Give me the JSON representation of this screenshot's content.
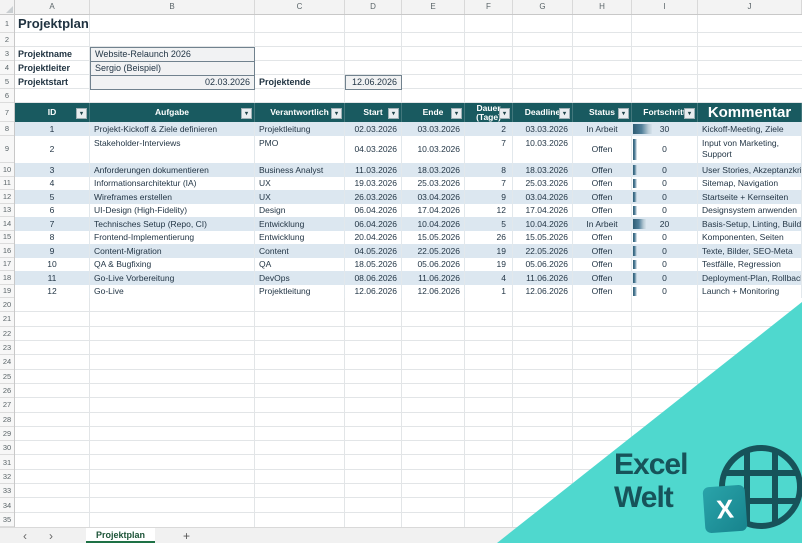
{
  "app": {
    "column_letters": [
      "A",
      "B",
      "C",
      "D",
      "E",
      "F",
      "G",
      "H",
      "I",
      "J"
    ],
    "first_row": 1,
    "last_row": 35
  },
  "title": "Projektplan",
  "info": {
    "name_label": "Projektname",
    "name_value": "Website-Relaunch 2026",
    "leader_label": "Projektleiter",
    "leader_value": "Sergio (Beispiel)",
    "start_label": "Projektstart",
    "start_value": "02.03.2026",
    "end_label": "Projektende",
    "end_value": "12.06.2026"
  },
  "table": {
    "headers": [
      {
        "label": "ID",
        "filter": true
      },
      {
        "label": "Aufgabe",
        "filter": true
      },
      {
        "label": "Verantwortlich",
        "filter": true
      },
      {
        "label": "Start",
        "filter": true
      },
      {
        "label": "Ende",
        "filter": true
      },
      {
        "label": "Dauer\n(Tage)",
        "filter": true
      },
      {
        "label": "Deadline",
        "filter": true
      },
      {
        "label": "Status",
        "filter": true
      },
      {
        "label": "Fortschritt",
        "filter": true
      },
      {
        "label": "Kommentar",
        "filter": false,
        "big": true
      }
    ],
    "rows": [
      {
        "id": "1",
        "aufgabe": "Projekt-Kickoff & Ziele definieren",
        "verantwortlich": "Projektleitung",
        "start": "02.03.2026",
        "ende": "03.03.2026",
        "dauer": "2",
        "deadline": "03.03.2026",
        "status": "In Arbeit",
        "fortschritt": 30,
        "kommentar": "Kickoff-Meeting, Ziele"
      },
      {
        "id": "2",
        "aufgabe": "Stakeholder-Interviews",
        "verantwortlich": "PMO",
        "start": "04.03.2026",
        "ende": "10.03.2026",
        "dauer": "7",
        "deadline": "10.03.2026",
        "status": "Offen",
        "fortschritt": 0,
        "kommentar": "Input von Marketing, Support",
        "tall": true
      },
      {
        "id": "3",
        "aufgabe": "Anforderungen dokumentieren",
        "verantwortlich": "Business Analyst",
        "start": "11.03.2026",
        "ende": "18.03.2026",
        "dauer": "8",
        "deadline": "18.03.2026",
        "status": "Offen",
        "fortschritt": 0,
        "kommentar": "User Stories, Akzeptanzkriterien"
      },
      {
        "id": "4",
        "aufgabe": "Informationsarchitektur (IA)",
        "verantwortlich": "UX",
        "start": "19.03.2026",
        "ende": "25.03.2026",
        "dauer": "7",
        "deadline": "25.03.2026",
        "status": "Offen",
        "fortschritt": 0,
        "kommentar": "Sitemap, Navigation"
      },
      {
        "id": "5",
        "aufgabe": "Wireframes erstellen",
        "verantwortlich": "UX",
        "start": "26.03.2026",
        "ende": "03.04.2026",
        "dauer": "9",
        "deadline": "03.04.2026",
        "status": "Offen",
        "fortschritt": 0,
        "kommentar": "Startseite + Kernseiten"
      },
      {
        "id": "6",
        "aufgabe": "UI-Design (High-Fidelity)",
        "verantwortlich": "Design",
        "start": "06.04.2026",
        "ende": "17.04.2026",
        "dauer": "12",
        "deadline": "17.04.2026",
        "status": "Offen",
        "fortschritt": 0,
        "kommentar": "Designsystem anwenden"
      },
      {
        "id": "7",
        "aufgabe": "Technisches Setup (Repo, CI)",
        "verantwortlich": "Entwicklung",
        "start": "06.04.2026",
        "ende": "10.04.2026",
        "dauer": "5",
        "deadline": "10.04.2026",
        "status": "In Arbeit",
        "fortschritt": 20,
        "kommentar": "Basis-Setup, Linting, Build"
      },
      {
        "id": "8",
        "aufgabe": "Frontend-Implementierung",
        "verantwortlich": "Entwicklung",
        "start": "20.04.2026",
        "ende": "15.05.2026",
        "dauer": "26",
        "deadline": "15.05.2026",
        "status": "Offen",
        "fortschritt": 0,
        "kommentar": "Komponenten, Seiten"
      },
      {
        "id": "9",
        "aufgabe": "Content-Migration",
        "verantwortlich": "Content",
        "start": "04.05.2026",
        "ende": "22.05.2026",
        "dauer": "19",
        "deadline": "22.05.2026",
        "status": "Offen",
        "fortschritt": 0,
        "kommentar": "Texte, Bilder, SEO-Meta"
      },
      {
        "id": "10",
        "aufgabe": "QA & Bugfixing",
        "verantwortlich": "QA",
        "start": "18.05.2026",
        "ende": "05.06.2026",
        "dauer": "19",
        "deadline": "05.06.2026",
        "status": "Offen",
        "fortschritt": 0,
        "kommentar": "Testfälle, Regression"
      },
      {
        "id": "11",
        "aufgabe": "Go-Live Vorbereitung",
        "verantwortlich": "DevOps",
        "start": "08.06.2026",
        "ende": "11.06.2026",
        "dauer": "4",
        "deadline": "11.06.2026",
        "status": "Offen",
        "fortschritt": 0,
        "kommentar": "Deployment-Plan, Rollback"
      },
      {
        "id": "12",
        "aufgabe": "Go-Live",
        "verantwortlich": "Projektleitung",
        "start": "12.06.2026",
        "ende": "12.06.2026",
        "dauer": "1",
        "deadline": "12.06.2026",
        "status": "Offen",
        "fortschritt": 0,
        "kommentar": "Launch + Monitoring"
      }
    ]
  },
  "tabstrip": {
    "prev": "‹",
    "next": "›",
    "active_tab": "Projektplan",
    "add": "+"
  },
  "watermark": {
    "line1": "Excel",
    "line2": "Welt",
    "badge": "X"
  },
  "colors": {
    "header_teal": "#195A60",
    "band_blue": "#DCE7F0",
    "databar": "#2E5C73",
    "watermark_teal": "#4FD8CE",
    "logo_dark": "#17535A",
    "tab_underline_green": "#1E7145"
  }
}
